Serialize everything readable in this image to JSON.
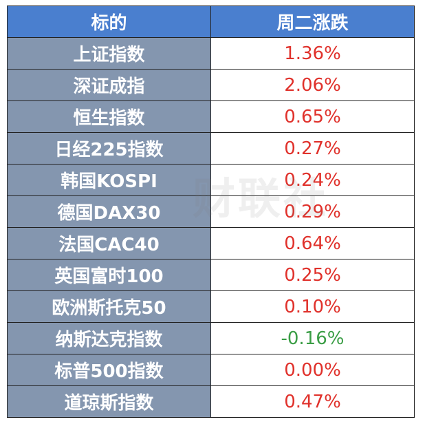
{
  "table": {
    "header": [
      "标的",
      "周二涨跌"
    ],
    "rows": [
      [
        "上证指数",
        "1.36%"
      ],
      [
        "深证成指",
        "2.06%"
      ],
      [
        "恒生指数",
        "0.65%"
      ],
      [
        "日经225指数",
        "0.27%"
      ],
      [
        "韩国KOSPI",
        "0.24%"
      ],
      [
        "德国DAX30",
        "0.29%"
      ],
      [
        "法国CAC40",
        "0.64%"
      ],
      [
        "英国富时100",
        "0.25%"
      ],
      [
        "欧洲斯托克50",
        "0.10%"
      ],
      [
        "纳斯达克指数",
        "-0.16%"
      ],
      [
        "标普500指数",
        "0.00%"
      ],
      [
        "道琼斯指数",
        "0.47%"
      ]
    ],
    "up_color": "#e0312b",
    "down_color": "#3a9d45"
  },
  "watermark": "财联社"
}
